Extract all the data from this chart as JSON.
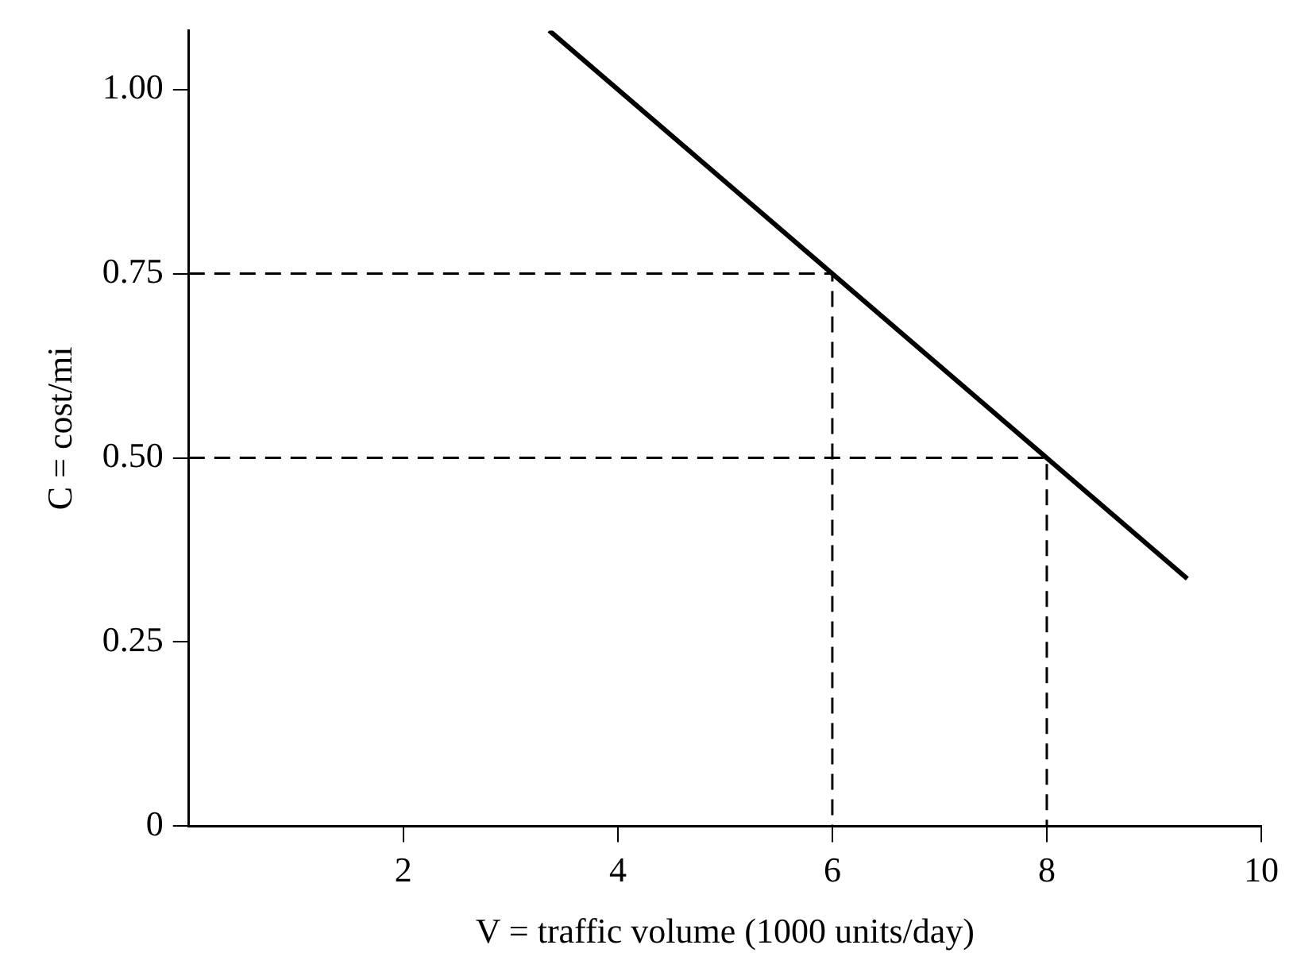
{
  "chart_data": {
    "type": "line",
    "xlabel": "V = traffic volume (1000 units/day)",
    "ylabel": "C = cost/mi",
    "xlim": [
      0,
      10
    ],
    "xticks": [
      2,
      4,
      6,
      8,
      10
    ],
    "ylim": [
      0,
      1.08
    ],
    "yticks": [
      0,
      {
        "value": 0.25,
        "label": "0.25"
      },
      {
        "value": 0.5,
        "label": "0.50"
      },
      {
        "value": 0.75,
        "label": "0.75"
      },
      {
        "value": 1,
        "label": "1.00"
      }
    ],
    "grid": false,
    "legend": false,
    "marker": "none",
    "series": [
      {
        "color": "#000000",
        "x": [
          3.36,
          9.31
        ],
        "values": [
          1.08,
          0.336
        ],
        "line_style": "solid"
      },
      {
        "color": "#000000",
        "x": [
          0,
          6,
          6
        ],
        "values": [
          0.75,
          0.75,
          0
        ],
        "line_style": "dashed"
      },
      {
        "color": "#000000",
        "x": [
          0,
          8,
          8
        ],
        "values": [
          0.5,
          0.5,
          0
        ],
        "line_style": "dashed"
      }
    ]
  }
}
